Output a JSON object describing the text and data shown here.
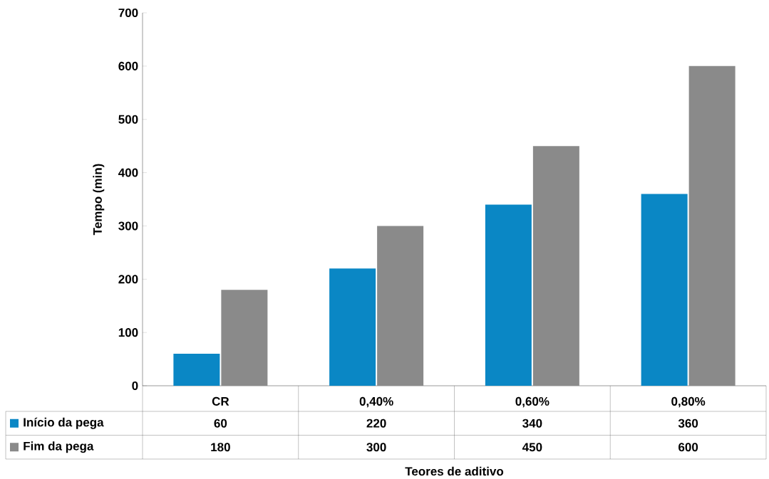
{
  "chart_data": {
    "type": "bar",
    "xlabel": "Teores de aditivo",
    "ylabel": "Tempo (min)",
    "categories": [
      "CR",
      "0,40%",
      "0,60%",
      "0,80%"
    ],
    "series": [
      {
        "name": "Início da pega",
        "color": "#0a87c5",
        "values": [
          60,
          220,
          340,
          360
        ]
      },
      {
        "name": "Fim da pega",
        "color": "#8a8a8a",
        "values": [
          180,
          300,
          450,
          600
        ]
      }
    ],
    "ylim": [
      0,
      700
    ],
    "yticks": [
      0,
      100,
      200,
      300,
      400,
      500,
      600,
      700
    ],
    "data_labels": true,
    "legend": "bottom",
    "grid": false
  }
}
